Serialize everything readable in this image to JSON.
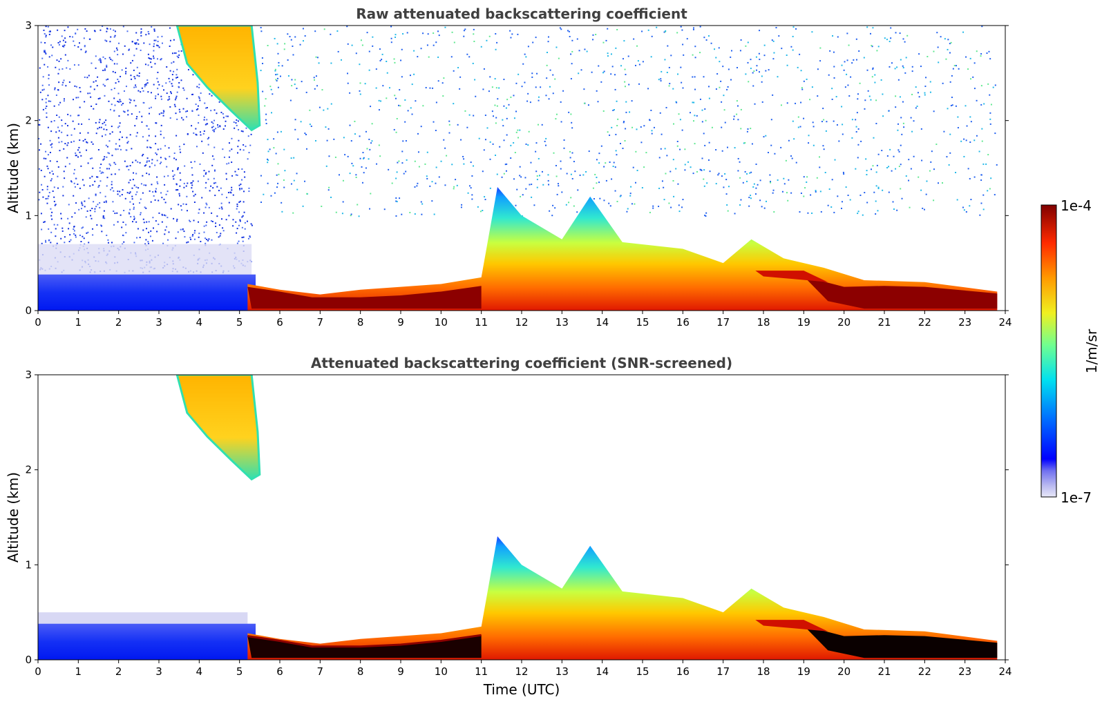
{
  "chart_data": [
    {
      "type": "heatmap",
      "title": "Raw attenuated backscattering coefficient",
      "xlabel": "",
      "ylabel": "Altitude (km)",
      "xlim": [
        0,
        24
      ],
      "ylim": [
        0,
        3
      ],
      "xticks": [
        "0",
        "1",
        "2",
        "3",
        "4",
        "5",
        "6",
        "7",
        "8",
        "9",
        "10",
        "11",
        "12",
        "13",
        "14",
        "15",
        "16",
        "17",
        "18",
        "19",
        "20",
        "21",
        "22",
        "23",
        "24"
      ],
      "yticks": [
        "0",
        "1",
        "2",
        "3"
      ],
      "layers": [
        {
          "x": [
            0,
            5.3
          ],
          "alt": [
            0,
            0.38
          ],
          "level": "low"
        },
        {
          "x": [
            5.2,
            11.0
          ],
          "alt": [
            0,
            0.28
          ],
          "level": "very-high"
        },
        {
          "x": [
            11.0,
            23.8
          ],
          "alt": [
            0,
            1.4
          ],
          "level": "moderate-high"
        },
        {
          "x": [
            19.0,
            23.8
          ],
          "alt": [
            0,
            0.3
          ],
          "level": "very-high"
        },
        {
          "x": [
            3.5,
            5.4
          ],
          "alt": [
            1.9,
            3.0
          ],
          "level": "high"
        }
      ],
      "boundary_layer_top_km": [
        {
          "x": 5.2,
          "y": 0.28
        },
        {
          "x": 6.0,
          "y": 0.22
        },
        {
          "x": 7.0,
          "y": 0.17
        },
        {
          "x": 8.0,
          "y": 0.22
        },
        {
          "x": 9.0,
          "y": 0.25
        },
        {
          "x": 10.0,
          "y": 0.28
        },
        {
          "x": 11.0,
          "y": 0.35
        },
        {
          "x": 11.4,
          "y": 1.3
        },
        {
          "x": 12.0,
          "y": 1.0
        },
        {
          "x": 13.0,
          "y": 0.75
        },
        {
          "x": 13.7,
          "y": 1.2
        },
        {
          "x": 14.5,
          "y": 0.72
        },
        {
          "x": 16.0,
          "y": 0.65
        },
        {
          "x": 17.0,
          "y": 0.5
        },
        {
          "x": 17.7,
          "y": 0.75
        },
        {
          "x": 18.5,
          "y": 0.55
        },
        {
          "x": 19.5,
          "y": 0.45
        },
        {
          "x": 20.5,
          "y": 0.32
        },
        {
          "x": 22.0,
          "y": 0.3
        },
        {
          "x": 23.8,
          "y": 0.2
        }
      ]
    },
    {
      "type": "heatmap",
      "title": "Attenuated backscattering coefficient (SNR-screened)",
      "xlabel": "Time (UTC)",
      "ylabel": "Altitude (km)",
      "xlim": [
        0,
        24
      ],
      "ylim": [
        0,
        3
      ],
      "xticks": [
        "0",
        "1",
        "2",
        "3",
        "4",
        "5",
        "6",
        "7",
        "8",
        "9",
        "10",
        "11",
        "12",
        "13",
        "14",
        "15",
        "16",
        "17",
        "18",
        "19",
        "20",
        "21",
        "22",
        "23",
        "24"
      ],
      "yticks": [
        "0",
        "1",
        "2",
        "3"
      ],
      "layers": [
        {
          "x": [
            0,
            5.3
          ],
          "alt": [
            0,
            0.5
          ],
          "level": "low"
        },
        {
          "x": [
            5.2,
            11.0
          ],
          "alt": [
            0,
            0.28
          ],
          "level": "very-high"
        },
        {
          "x": [
            11.0,
            23.8
          ],
          "alt": [
            0,
            1.3
          ],
          "level": "moderate-high"
        },
        {
          "x": [
            19.4,
            23.8
          ],
          "alt": [
            0,
            0.28
          ],
          "level": "saturated"
        },
        {
          "x": [
            3.5,
            5.6
          ],
          "alt": [
            1.9,
            3.0
          ],
          "level": "high"
        }
      ]
    }
  ],
  "colorbar": {
    "label": "1/m/sr",
    "max_label": "1e-4",
    "min_label": "1e-7",
    "scale": "log",
    "colormap": "jet",
    "range": [
      1e-07,
      0.0001
    ]
  },
  "colors": {
    "very_low": "#dcdcf5",
    "low": "#1a2ef0",
    "mid": "#20d8c8",
    "high": "#ffc800",
    "very_high": "#8c0000",
    "saturated": "#000000"
  }
}
